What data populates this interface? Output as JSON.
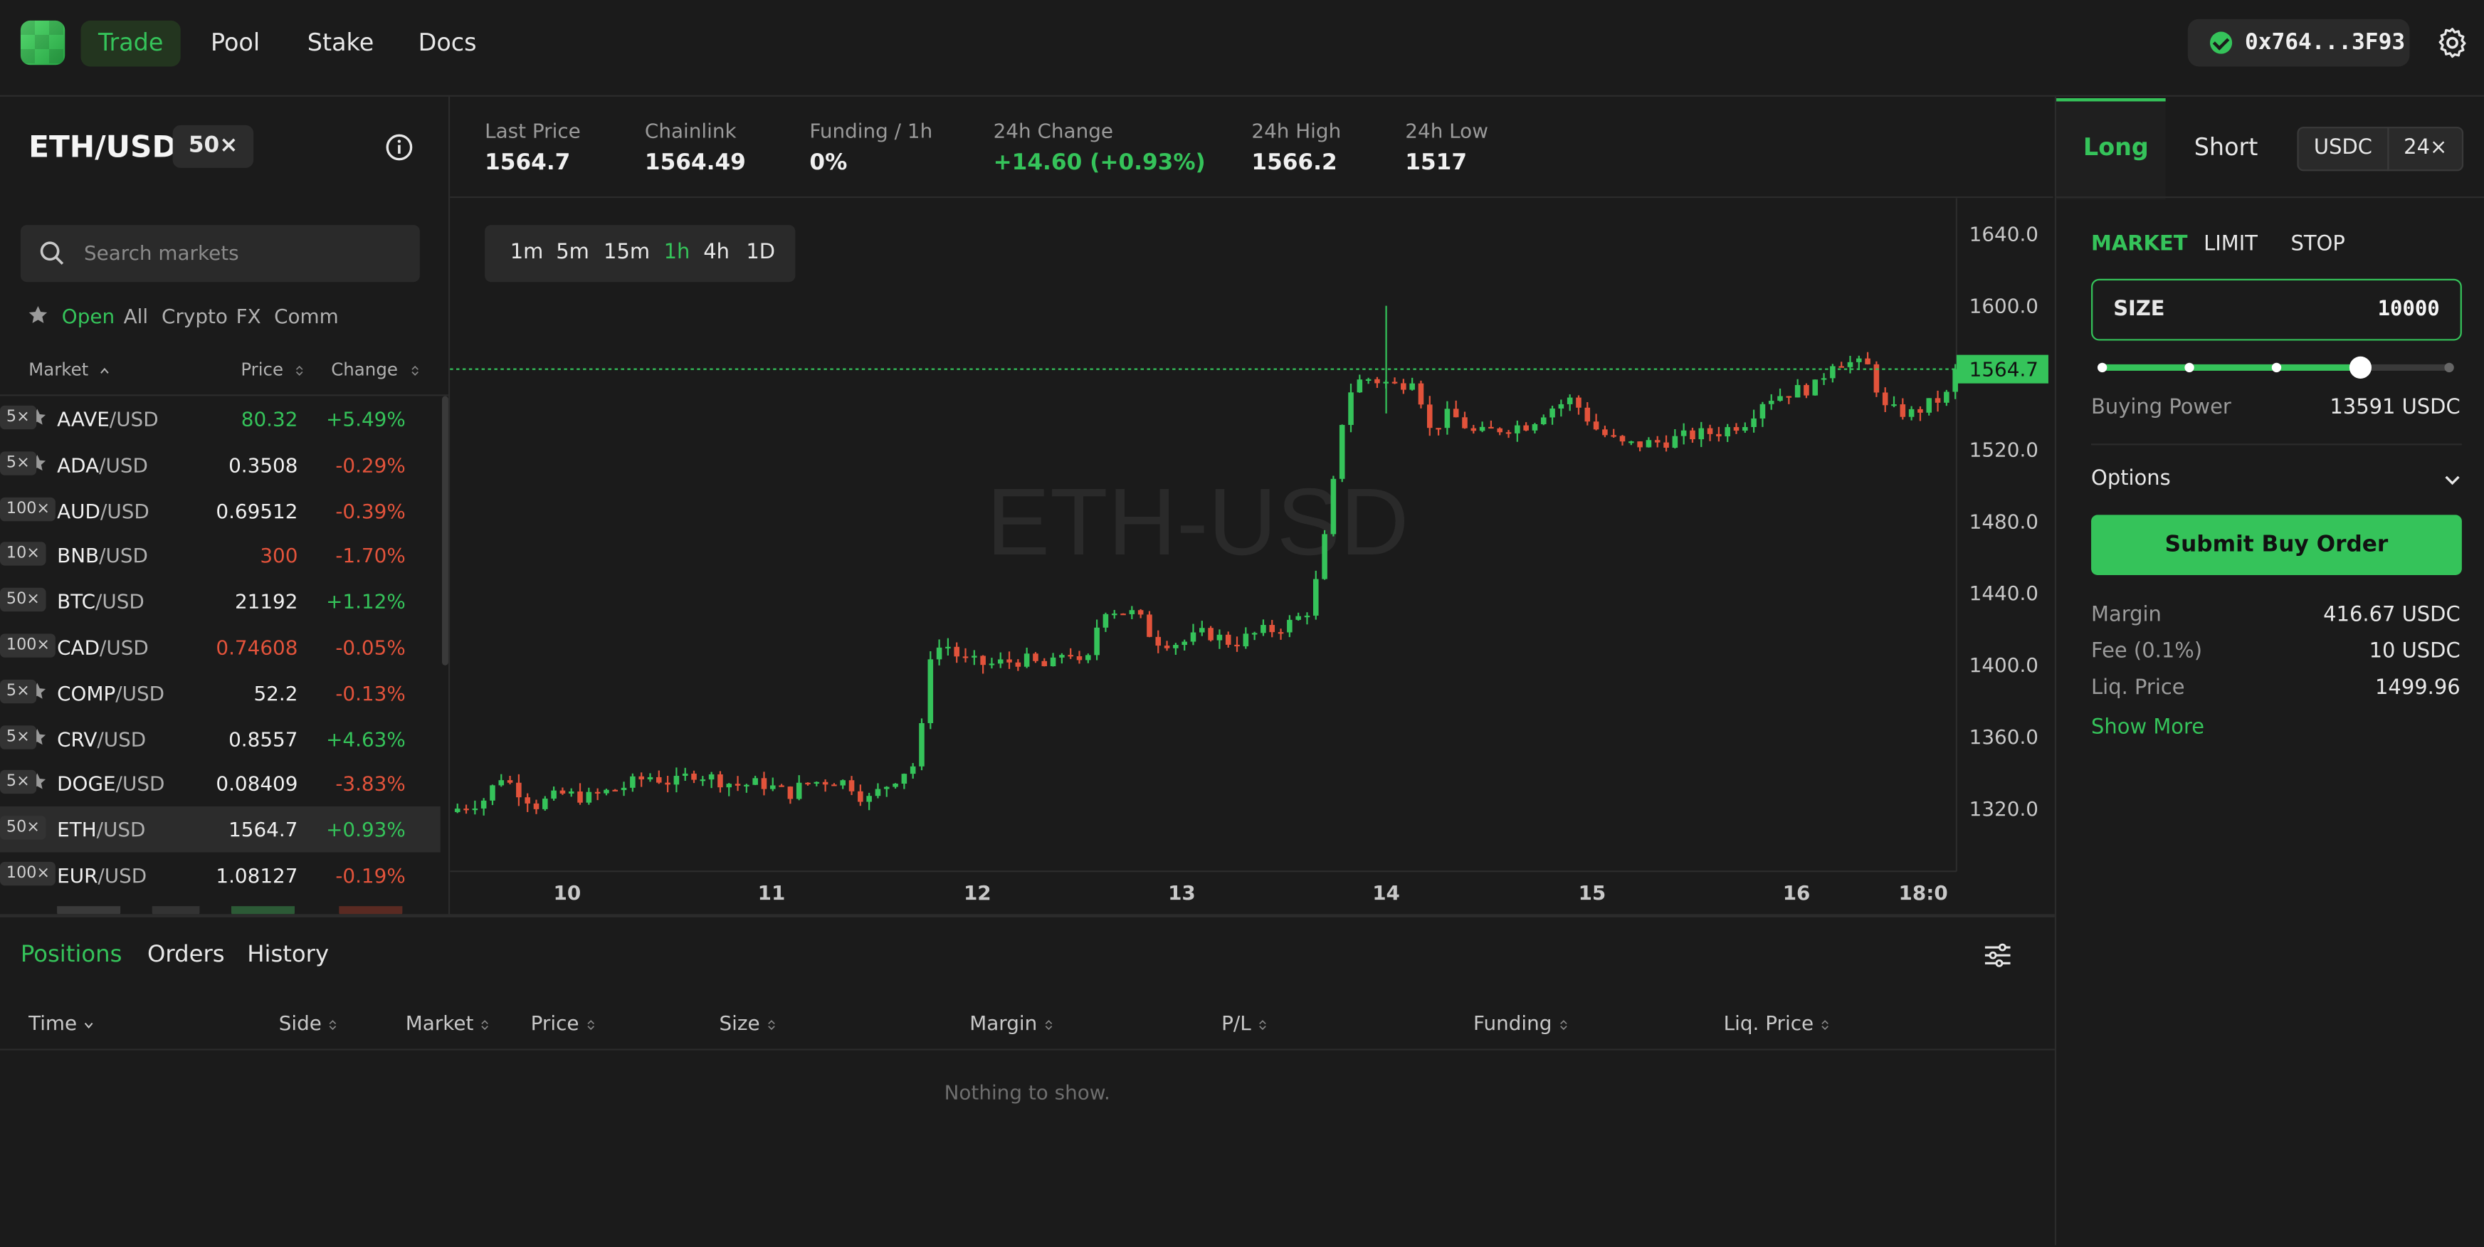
{
  "nav": {
    "items": [
      {
        "label": "Trade",
        "active": true
      },
      {
        "label": "Pool",
        "active": false
      },
      {
        "label": "Stake",
        "active": false
      },
      {
        "label": "Docs",
        "active": false
      }
    ],
    "wallet": "0x764...3F93",
    "accent_color": "#35c35a"
  },
  "market_panel": {
    "pair": "ETH/USD",
    "leverage": "50×",
    "search_placeholder": "Search markets",
    "filters": [
      "Open",
      "All",
      "Crypto",
      "FX",
      "Comm"
    ],
    "columns": {
      "market": "Market",
      "price": "Price",
      "change": "Change"
    },
    "rows": [
      {
        "base": "AAVE",
        "quote": "/USD",
        "lev": "5×",
        "price": "80.32",
        "price_color": "green",
        "change": "+5.49%",
        "change_color": "green"
      },
      {
        "base": "ADA",
        "quote": "/USD",
        "lev": "5×",
        "price": "0.3508",
        "price_color": "white",
        "change": "-0.29%",
        "change_color": "red"
      },
      {
        "base": "AUD",
        "quote": "/USD",
        "lev": "100×",
        "price": "0.69512",
        "price_color": "white",
        "change": "-0.39%",
        "change_color": "red"
      },
      {
        "base": "BNB",
        "quote": "/USD",
        "lev": "10×",
        "price": "300",
        "price_color": "red",
        "change": "-1.70%",
        "change_color": "red"
      },
      {
        "base": "BTC",
        "quote": "/USD",
        "lev": "50×",
        "price": "21192",
        "price_color": "white",
        "change": "+1.12%",
        "change_color": "green"
      },
      {
        "base": "CAD",
        "quote": "/USD",
        "lev": "100×",
        "price": "0.74608",
        "price_color": "red",
        "change": "-0.05%",
        "change_color": "red"
      },
      {
        "base": "COMP",
        "quote": "/USD",
        "lev": "5×",
        "price": "52.2",
        "price_color": "white",
        "change": "-0.13%",
        "change_color": "red"
      },
      {
        "base": "CRV",
        "quote": "/USD",
        "lev": "5×",
        "price": "0.8557",
        "price_color": "white",
        "change": "+4.63%",
        "change_color": "green"
      },
      {
        "base": "DOGE",
        "quote": "/USD",
        "lev": "5×",
        "price": "0.08409",
        "price_color": "white",
        "change": "-3.83%",
        "change_color": "red"
      },
      {
        "base": "ETH",
        "quote": "/USD",
        "lev": "50×",
        "price": "1564.7",
        "price_color": "white",
        "change": "+0.93%",
        "change_color": "green",
        "selected": true
      },
      {
        "base": "EUR",
        "quote": "/USD",
        "lev": "100×",
        "price": "1.08127",
        "price_color": "white",
        "change": "-0.19%",
        "change_color": "red"
      }
    ]
  },
  "stats": [
    {
      "label": "Last Price",
      "value": "1564.7",
      "color": "white"
    },
    {
      "label": "Chainlink",
      "value": "1564.49",
      "color": "white"
    },
    {
      "label": "Funding / 1h",
      "value": "0%",
      "color": "white"
    },
    {
      "label": "24h Change",
      "value": "+14.60 (+0.93%)",
      "color": "green"
    },
    {
      "label": "24h High",
      "value": "1566.2",
      "color": "white"
    },
    {
      "label": "24h Low",
      "value": "1517",
      "color": "white"
    }
  ],
  "timeframes": [
    {
      "label": "1m",
      "active": false
    },
    {
      "label": "5m",
      "active": false
    },
    {
      "label": "15m",
      "active": false
    },
    {
      "label": "1h",
      "active": true
    },
    {
      "label": "4h",
      "active": false
    },
    {
      "label": "1D",
      "active": false
    }
  ],
  "chart_data": {
    "type": "candlestick",
    "watermark": "ETH-USD",
    "y_ticks": [
      1640.0,
      1600.0,
      1560.0,
      1520.0,
      1480.0,
      1440.0,
      1400.0,
      1360.0,
      1320.0
    ],
    "y_tick_labels": [
      "1640.0",
      "1600.0",
      "1520.0",
      "1480.0",
      "1440.0",
      "1400.0",
      "1360.0",
      "1320.0"
    ],
    "x_tick_labels": [
      "10",
      "11",
      "12",
      "13",
      "14",
      "15",
      "16",
      "18:0"
    ],
    "last_price": 1564.7,
    "last_price_label": "1564.7",
    "ylim": [
      1285,
      1660
    ],
    "up_color": "#35c35a",
    "down_color": "#e2533b",
    "close_path": [
      [
        0,
        1320
      ],
      [
        6,
        1325
      ],
      [
        10,
        1338
      ],
      [
        14,
        1330
      ],
      [
        18,
        1322
      ],
      [
        24,
        1328
      ],
      [
        30,
        1326
      ],
      [
        38,
        1332
      ],
      [
        44,
        1338
      ],
      [
        50,
        1334
      ],
      [
        54,
        1340
      ],
      [
        60,
        1336
      ],
      [
        64,
        1333
      ],
      [
        70,
        1334
      ],
      [
        76,
        1328
      ],
      [
        80,
        1334
      ],
      [
        86,
        1336
      ],
      [
        90,
        1334
      ],
      [
        94,
        1324
      ],
      [
        98,
        1332
      ],
      [
        102,
        1340
      ],
      [
        106,
        1346
      ],
      [
        108,
        1405
      ],
      [
        112,
        1412
      ],
      [
        116,
        1402
      ],
      [
        122,
        1400
      ],
      [
        130,
        1403
      ],
      [
        136,
        1398
      ],
      [
        140,
        1410
      ],
      [
        144,
        1395
      ],
      [
        148,
        1432
      ],
      [
        152,
        1430
      ],
      [
        156,
        1428
      ],
      [
        160,
        1414
      ],
      [
        166,
        1412
      ],
      [
        172,
        1418
      ],
      [
        178,
        1412
      ],
      [
        184,
        1418
      ],
      [
        188,
        1420
      ],
      [
        192,
        1424
      ],
      [
        196,
        1432
      ],
      [
        200,
        1480
      ],
      [
        204,
        1550
      ],
      [
        208,
        1560
      ],
      [
        212,
        1558
      ],
      [
        216,
        1555
      ],
      [
        220,
        1562
      ],
      [
        223,
        1530
      ],
      [
        228,
        1540
      ],
      [
        234,
        1528
      ],
      [
        240,
        1532
      ],
      [
        246,
        1534
      ],
      [
        250,
        1542
      ],
      [
        256,
        1548
      ],
      [
        262,
        1530
      ],
      [
        268,
        1522
      ],
      [
        276,
        1524
      ],
      [
        284,
        1528
      ],
      [
        290,
        1530
      ],
      [
        296,
        1536
      ],
      [
        300,
        1548
      ],
      [
        306,
        1552
      ],
      [
        312,
        1555
      ],
      [
        316,
        1570
      ],
      [
        320,
        1568
      ],
      [
        324,
        1566
      ],
      [
        328,
        1542
      ],
      [
        334,
        1540
      ],
      [
        338,
        1545
      ],
      [
        342,
        1550
      ],
      [
        344,
        1564.7
      ]
    ]
  },
  "order": {
    "tabs": {
      "long": "Long",
      "short": "Short"
    },
    "currency": "USDC",
    "leverage": "24×",
    "types": [
      {
        "label": "MARKET",
        "active": true
      },
      {
        "label": "LIMIT",
        "active": false
      },
      {
        "label": "STOP",
        "active": false
      }
    ],
    "size_label": "SIZE",
    "size_value": "10000",
    "slider_fraction": 0.75,
    "buying_power_label": "Buying Power",
    "buying_power_value": "13591 USDC",
    "options_label": "Options",
    "submit_label": "Submit Buy Order",
    "margin_label": "Margin",
    "margin_value": "416.67 USDC",
    "fee_label": "Fee (0.1%)",
    "fee_value": "10 USDC",
    "liq_label": "Liq. Price",
    "liq_value": "1499.96",
    "show_more": "Show More"
  },
  "bottom": {
    "tabs": [
      {
        "label": "Positions",
        "active": true
      },
      {
        "label": "Orders",
        "active": false
      },
      {
        "label": "History",
        "active": false
      }
    ],
    "columns": [
      "Time",
      "Side",
      "Market",
      "Price",
      "Size",
      "Margin",
      "P/L",
      "Funding",
      "Liq. Price"
    ],
    "empty_text": "Nothing to show."
  }
}
